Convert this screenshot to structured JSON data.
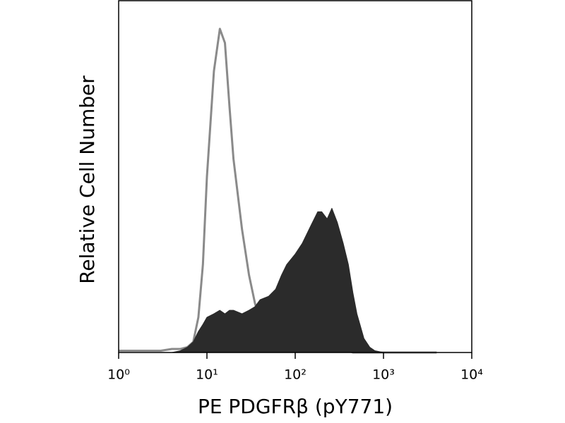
{
  "chart_data": {
    "type": "area",
    "xlabel": "PE PDGFRβ (pY771)",
    "ylabel": "Relative Cell Number",
    "xscale": "log",
    "xlim": [
      1,
      10000
    ],
    "xticks": [
      {
        "value": 1,
        "label": "10⁰"
      },
      {
        "value": 10,
        "label": "10¹"
      },
      {
        "value": 100,
        "label": "10²"
      },
      {
        "value": 1000,
        "label": "10³"
      },
      {
        "value": 10000,
        "label": "10⁴"
      }
    ],
    "ylim": [
      0,
      100
    ],
    "x": [
      1,
      2,
      3,
      4,
      5,
      6,
      7,
      8,
      9,
      10,
      12,
      14,
      16,
      18,
      20,
      25,
      30,
      35,
      40,
      50,
      60,
      70,
      80,
      100,
      120,
      150,
      180,
      200,
      230,
      260,
      300,
      350,
      400,
      450,
      500,
      600,
      700,
      800,
      1000,
      2000,
      4000
    ],
    "series": [
      {
        "color": "#8a8a8a",
        "fill": false,
        "values": [
          0.5,
          0.5,
          0.5,
          1,
          1,
          1.5,
          3,
          10,
          25,
          50,
          80,
          92,
          88,
          70,
          55,
          35,
          22,
          14,
          9,
          5,
          3,
          2,
          1.5,
          1,
          1,
          0.5,
          0.5,
          0.5,
          0.5,
          0.5,
          0.5,
          0.5,
          0.5,
          0,
          0,
          0,
          0,
          0,
          0,
          0,
          0
        ]
      },
      {
        "color": "#2b2b2b",
        "fill": true,
        "values": [
          0,
          0,
          0,
          0,
          0.5,
          1.5,
          3,
          6,
          8,
          10,
          11,
          12,
          11,
          12,
          12,
          11,
          12,
          13,
          15,
          16,
          18,
          22,
          25,
          28,
          31,
          36,
          40,
          40,
          38,
          41,
          37,
          31,
          25,
          17,
          11,
          4,
          1.5,
          0.5,
          0,
          0,
          0
        ]
      }
    ]
  }
}
